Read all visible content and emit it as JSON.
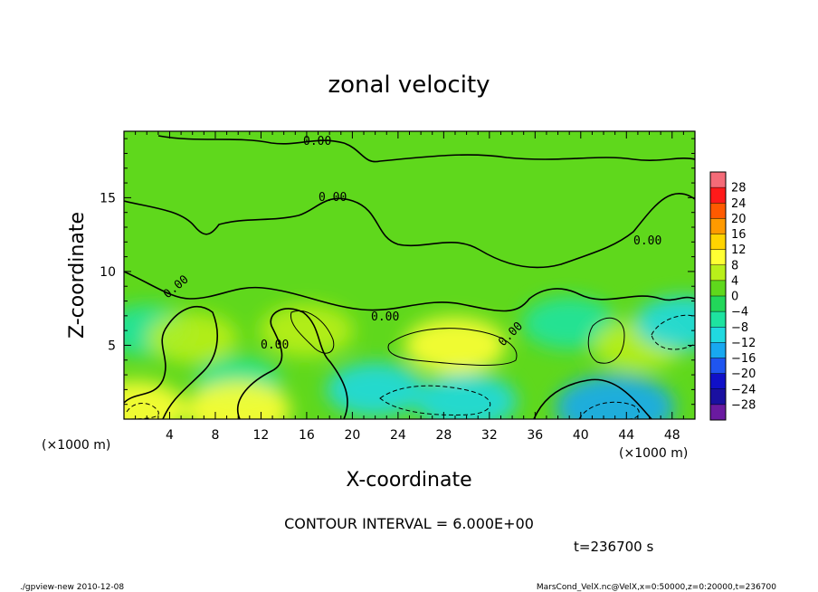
{
  "chart_data": {
    "type": "heatmap",
    "title": "zonal velocity",
    "xlabel": "X-coordinate",
    "ylabel": "Z-coordinate",
    "x_unit": "(×1000 m)",
    "y_unit": "(×1000 m)",
    "xlim": [
      0,
      50
    ],
    "ylim": [
      0,
      19.5
    ],
    "x_ticks": [
      "4",
      "8",
      "12",
      "16",
      "20",
      "24",
      "28",
      "32",
      "36",
      "40",
      "44",
      "48"
    ],
    "x_tick_values": [
      4,
      8,
      12,
      16,
      20,
      24,
      28,
      32,
      36,
      40,
      44,
      48
    ],
    "y_ticks": [
      "5",
      "10",
      "15"
    ],
    "y_tick_values": [
      5,
      10,
      15
    ],
    "colorbar": {
      "levels": [
        "28",
        "24",
        "20",
        "16",
        "12",
        "8",
        "4",
        "0",
        "−4",
        "−8",
        "−12",
        "−16",
        "−20",
        "−24",
        "−28"
      ],
      "colors": [
        "#f46b78",
        "#ff1a1a",
        "#ff5a00",
        "#ff9a00",
        "#ffd400",
        "#ffff33",
        "#b9ef1a",
        "#5fd81c",
        "#22d75a",
        "#1ee3a0",
        "#20d9e0",
        "#18a8f0",
        "#1f55f0",
        "#1010c8",
        "#1a10a0",
        "#6a1aa0"
      ]
    },
    "contour_labels": [
      "0.00",
      "0.00",
      "0.00",
      "0.00",
      "0.00",
      "0.00",
      "0.00"
    ],
    "contour_interval": "CONTOUR INTERVAL = 6.000E+00",
    "time": "t=236700 s",
    "features": [
      {
        "x": 2,
        "z": 6,
        "value": -6
      },
      {
        "x": 6,
        "z": 5.5,
        "value": 6
      },
      {
        "x": 10,
        "z": 2.5,
        "value": -5
      },
      {
        "x": 16,
        "z": 6,
        "value": 7
      },
      {
        "x": 22,
        "z": 2,
        "value": -8
      },
      {
        "x": 29,
        "z": 5,
        "value": 9
      },
      {
        "x": 30,
        "z": 1.2,
        "value": -9
      },
      {
        "x": 39,
        "z": 6.5,
        "value": -7
      },
      {
        "x": 45,
        "z": 5,
        "value": 6
      },
      {
        "x": 43,
        "z": 0.8,
        "value": -14
      },
      {
        "x": 10,
        "z": 0.6,
        "value": 10
      },
      {
        "x": 1,
        "z": 0.7,
        "value": 9
      },
      {
        "x": 49,
        "z": 6.5,
        "value": -8
      }
    ]
  },
  "footer": {
    "left": "./gpview-new  2010-12-08",
    "right": "MarsCond_VelX.nc@VelX,x=0:50000,z=0:20000,t=236700"
  }
}
